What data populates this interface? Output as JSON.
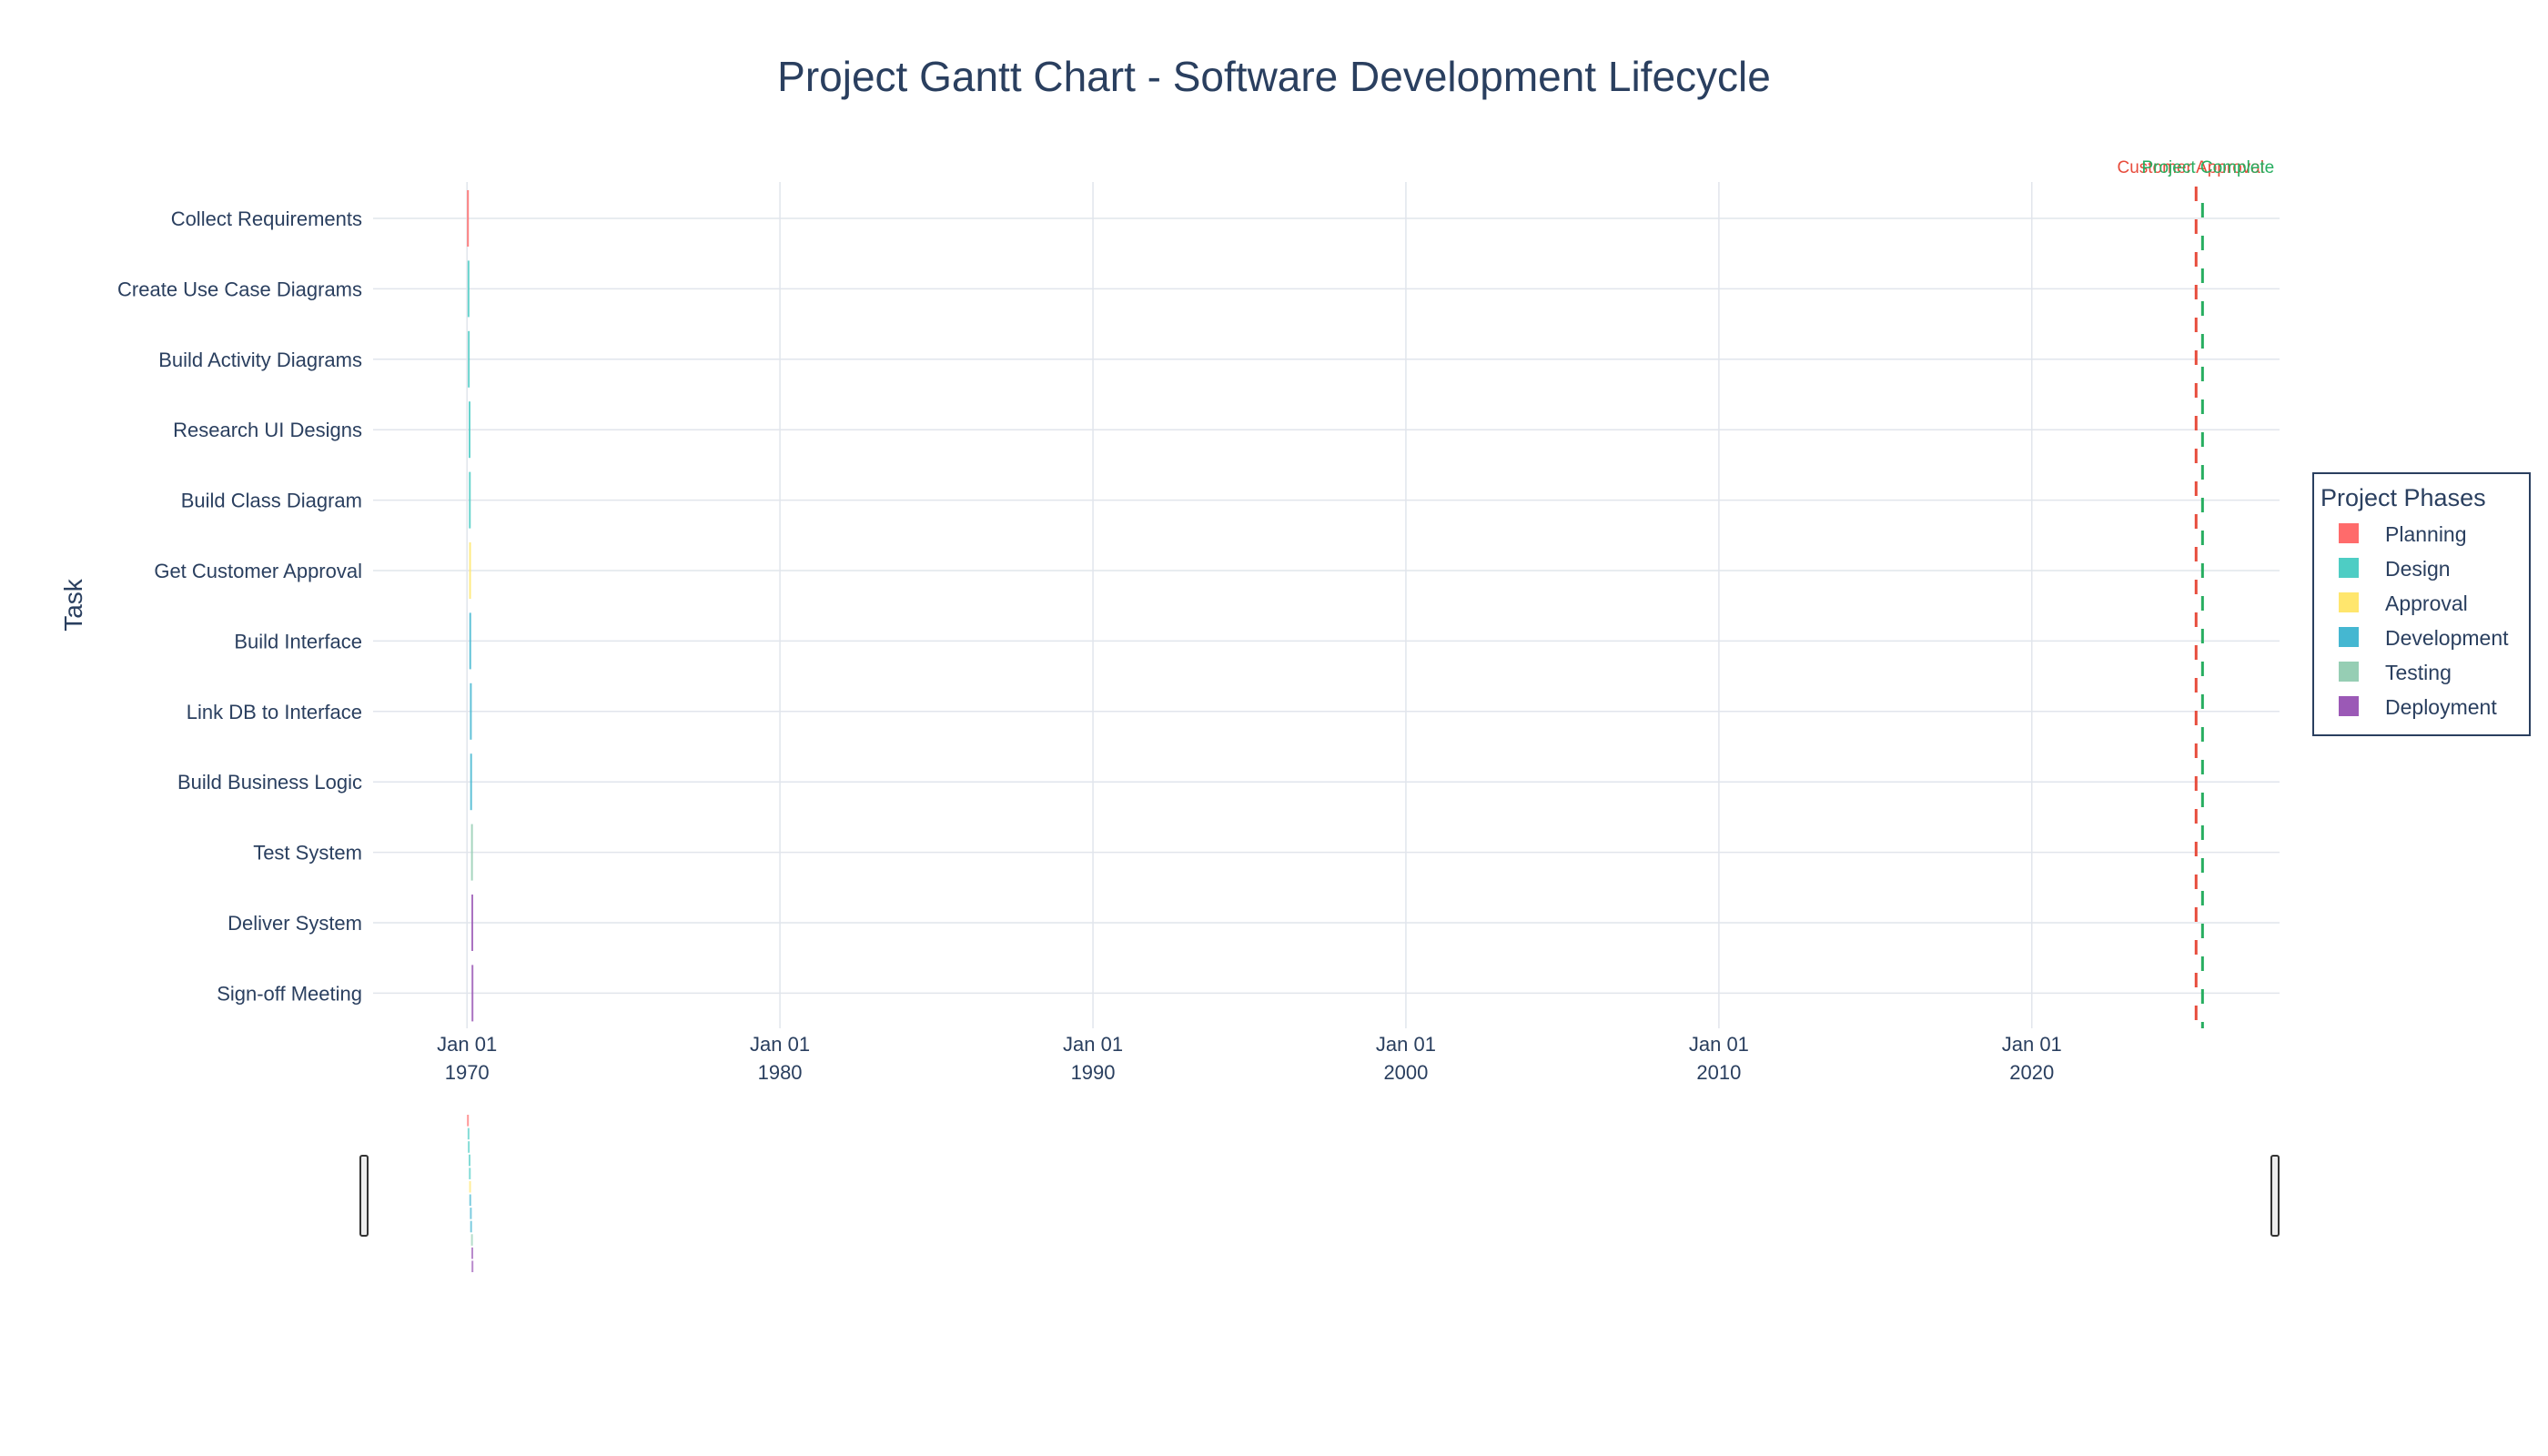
{
  "chart_data": {
    "type": "bar",
    "orientation": "horizontal",
    "title": "Project Gantt Chart - Software Development Lifecycle",
    "xlabel": "",
    "ylabel": "Task",
    "x_axis": {
      "type": "date",
      "range": [
        "1967-01-01",
        "2027-12-01"
      ],
      "ticks": [
        {
          "value": "1970-01-01",
          "label_top": "Jan 01",
          "label_bottom": "1970"
        },
        {
          "value": "1980-01-01",
          "label_top": "Jan 01",
          "label_bottom": "1980"
        },
        {
          "value": "1990-01-01",
          "label_top": "Jan 01",
          "label_bottom": "1990"
        },
        {
          "value": "2000-01-01",
          "label_top": "Jan 01",
          "label_bottom": "2000"
        },
        {
          "value": "2010-01-01",
          "label_top": "Jan 01",
          "label_bottom": "2010"
        },
        {
          "value": "2020-01-01",
          "label_top": "Jan 01",
          "label_bottom": "2020"
        }
      ]
    },
    "grid": true,
    "legend": {
      "title": "Project Phases",
      "placement": "right",
      "entries": [
        {
          "name": "Planning",
          "color": "#FF6B6B"
        },
        {
          "name": "Design",
          "color": "#4ECDC4"
        },
        {
          "name": "Approval",
          "color": "#FFE66D"
        },
        {
          "name": "Development",
          "color": "#45B7D1"
        },
        {
          "name": "Testing",
          "color": "#96CEB4"
        },
        {
          "name": "Deployment",
          "color": "#9B59B6"
        }
      ]
    },
    "tasks": [
      {
        "name": "Collect Requirements",
        "phase": "Planning",
        "start": "1970-01-01",
        "end": "1970-01-08"
      },
      {
        "name": "Create Use Case Diagrams",
        "phase": "Design",
        "start": "1970-01-08",
        "end": "1970-01-11"
      },
      {
        "name": "Build Activity Diagrams",
        "phase": "Design",
        "start": "1970-01-11",
        "end": "1970-01-20"
      },
      {
        "name": "Research UI Designs",
        "phase": "Design",
        "start": "1970-01-20",
        "end": "1970-01-23"
      },
      {
        "name": "Build Class Diagram",
        "phase": "Design",
        "start": "1970-01-23",
        "end": "1970-01-26"
      },
      {
        "name": "Get Customer Approval",
        "phase": "Approval",
        "start": "1970-01-26",
        "end": "1970-01-28"
      },
      {
        "name": "Build Interface",
        "phase": "Development",
        "start": "1970-01-28",
        "end": "1970-02-04"
      },
      {
        "name": "Link DB to Interface",
        "phase": "Development",
        "start": "1970-02-04",
        "end": "1970-02-07"
      },
      {
        "name": "Build Business Logic",
        "phase": "Development",
        "start": "1970-02-07",
        "end": "1970-02-17"
      },
      {
        "name": "Test System",
        "phase": "Testing",
        "start": "1970-02-17",
        "end": "1970-02-21"
      },
      {
        "name": "Deliver System",
        "phase": "Deployment",
        "start": "1970-02-21",
        "end": "1970-02-23"
      },
      {
        "name": "Sign-off Meeting",
        "phase": "Deployment",
        "start": "1970-02-23",
        "end": "1970-02-24"
      }
    ],
    "milestones": [
      {
        "label": "Customer Approval",
        "date": "2025-04-01",
        "color": "#E74C3C"
      },
      {
        "label": "Project Complete",
        "date": "2025-06-15",
        "color": "#27AE60"
      }
    ],
    "rangeslider": true
  }
}
